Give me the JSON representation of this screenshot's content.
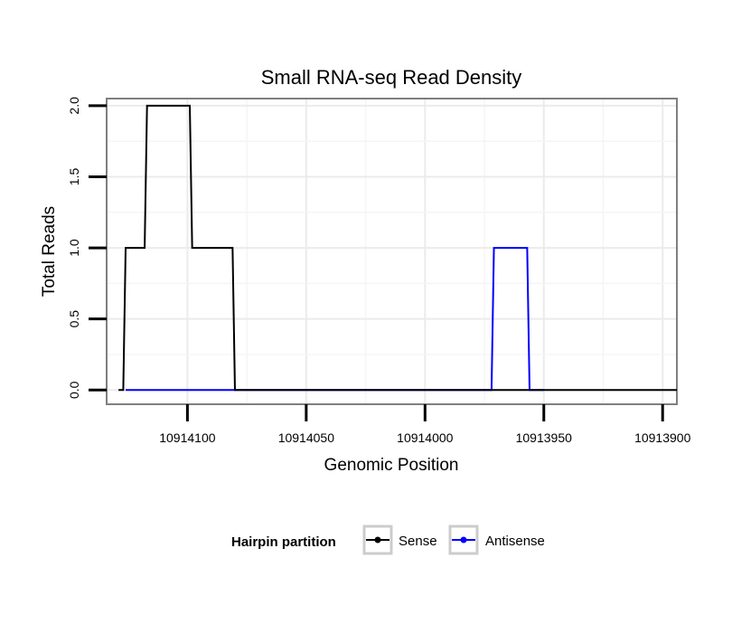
{
  "chart_data": {
    "type": "line",
    "title": "Small RNA-seq Read Density",
    "xlabel": "Genomic Position",
    "ylabel": "Total Reads",
    "x_reversed": true,
    "xlim": [
      10914134,
      10913894
    ],
    "ylim": [
      -0.1,
      2.05
    ],
    "x_ticks": [
      10914100,
      10914050,
      10914000,
      10913950,
      10913900
    ],
    "x_tick_labels": [
      "10914100",
      "10914050",
      "10914000",
      "10913950",
      "10913900"
    ],
    "y_ticks": [
      0.0,
      0.5,
      1.0,
      1.5,
      2.0
    ],
    "y_tick_labels": [
      "0.0",
      "0.5",
      "1.0",
      "1.5",
      "2.0"
    ],
    "grid": true,
    "series": [
      {
        "name": "Sense",
        "color": "#000000",
        "points": [
          [
            10914129,
            0
          ],
          [
            10914127,
            0
          ],
          [
            10914126,
            1
          ],
          [
            10914118,
            1
          ],
          [
            10914117,
            2
          ],
          [
            10914099,
            2
          ],
          [
            10914098,
            1
          ],
          [
            10914081,
            1
          ],
          [
            10914080,
            0
          ],
          [
            10913894,
            0
          ]
        ]
      },
      {
        "name": "Antisense",
        "color": "#0000ff",
        "points": [
          [
            10914126,
            0
          ],
          [
            10914080,
            0
          ],
          [
            10914000,
            0
          ],
          [
            10913972,
            0
          ],
          [
            10913971,
            1
          ],
          [
            10913957,
            1
          ],
          [
            10913956,
            0
          ],
          [
            10913950,
            0
          ]
        ]
      }
    ],
    "legend": {
      "title": "Hairpin partition",
      "position": "bottom",
      "entries": [
        "Sense",
        "Antisense"
      ]
    }
  }
}
